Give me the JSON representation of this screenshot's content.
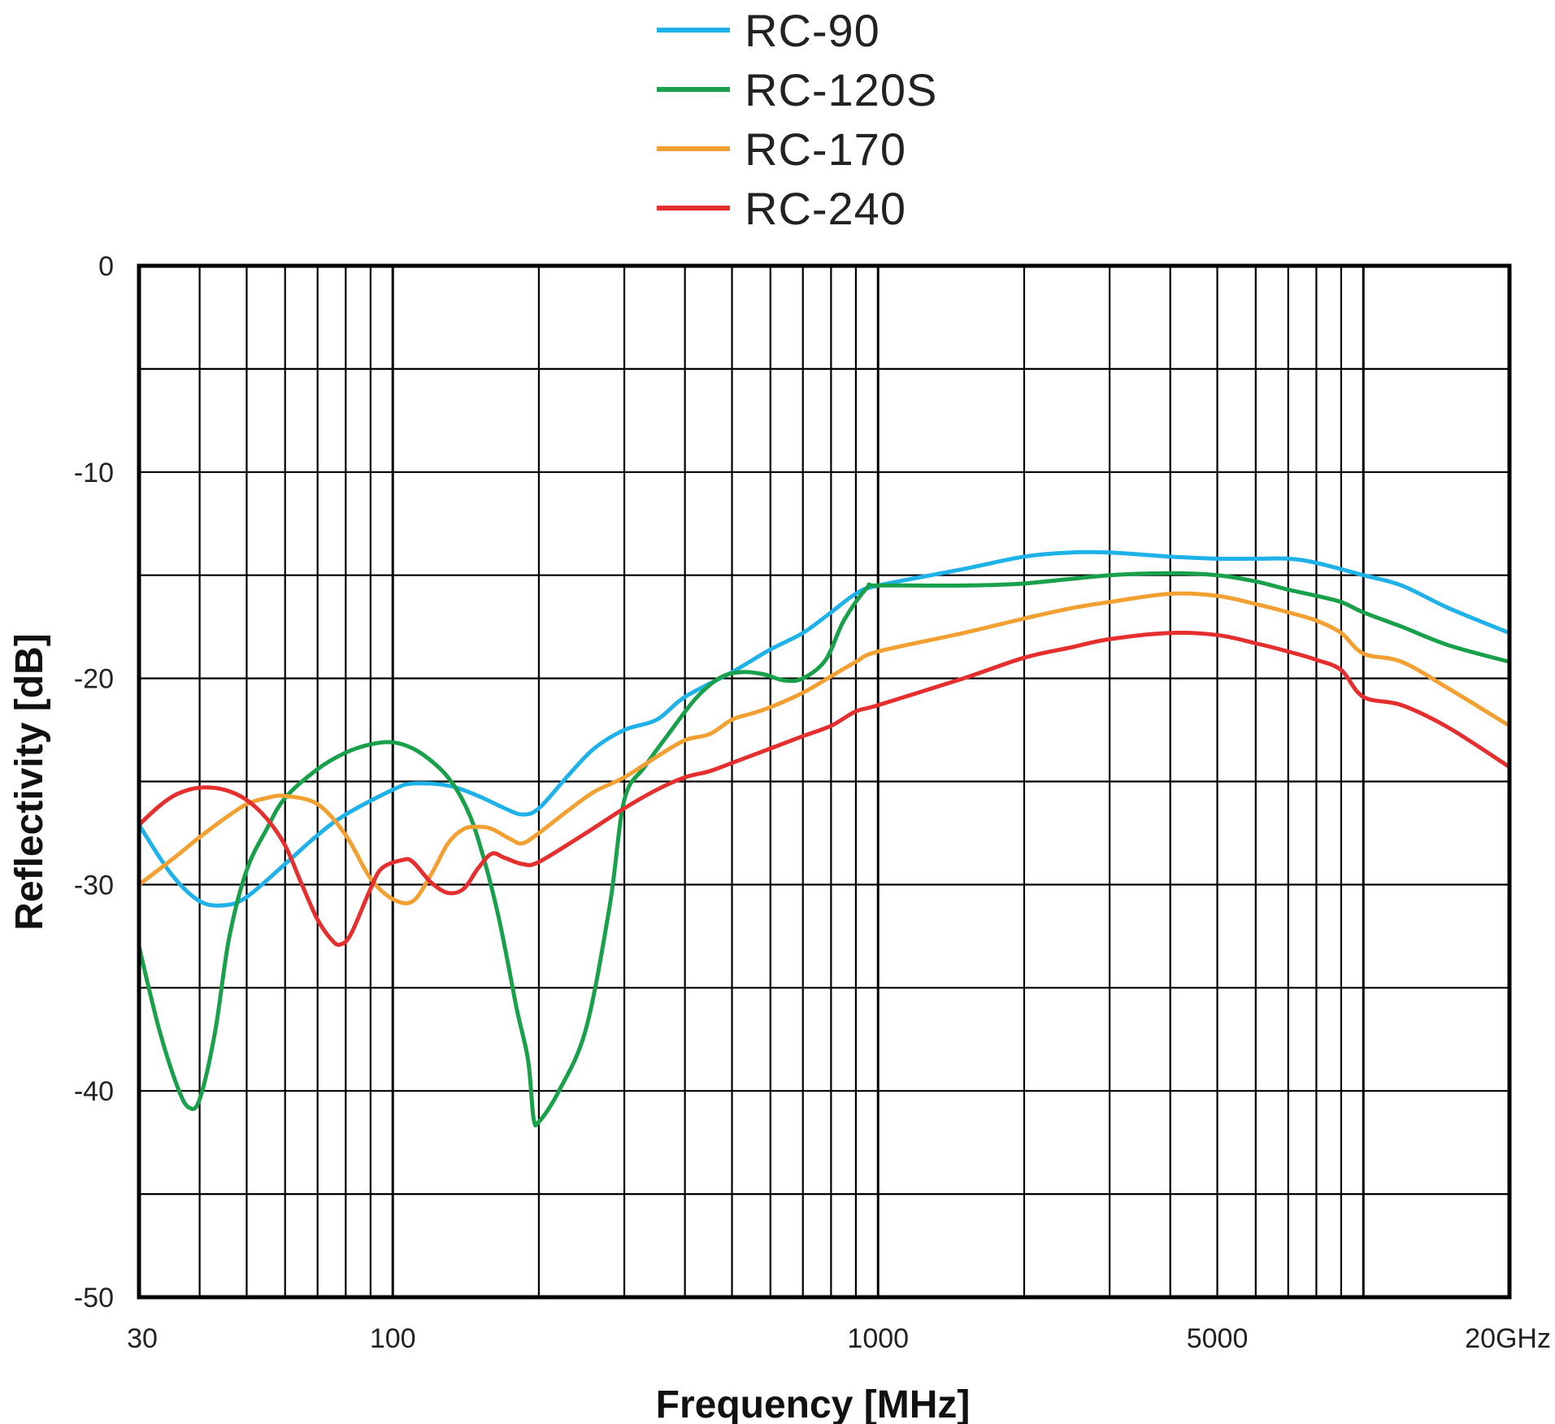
{
  "chart_data": {
    "type": "line",
    "xlabel": "Frequency [MHz]",
    "ylabel": "Reflectivity [dB]",
    "x_scale": "log",
    "xlim": [
      30,
      20000
    ],
    "ylim": [
      -50,
      0
    ],
    "grid": true,
    "legend_position": "top-center",
    "y_ticks": [
      "0",
      "-10",
      "-20",
      "-30",
      "-40",
      "-50"
    ],
    "x_ticks": [
      "30",
      "100",
      "1000",
      "5000",
      "20GHz"
    ],
    "series": [
      {
        "name": "RC-90",
        "color": "#1fb2e8",
        "points": [
          [
            30,
            -27.1
          ],
          [
            35,
            -29.5
          ],
          [
            40,
            -30.8
          ],
          [
            45,
            -31.0
          ],
          [
            50,
            -30.6
          ],
          [
            60,
            -29.0
          ],
          [
            70,
            -27.6
          ],
          [
            80,
            -26.6
          ],
          [
            100,
            -25.4
          ],
          [
            110,
            -25.1
          ],
          [
            130,
            -25.2
          ],
          [
            150,
            -25.7
          ],
          [
            170,
            -26.3
          ],
          [
            185,
            -26.6
          ],
          [
            200,
            -26.3
          ],
          [
            230,
            -24.7
          ],
          [
            260,
            -23.4
          ],
          [
            300,
            -22.5
          ],
          [
            350,
            -22.0
          ],
          [
            400,
            -20.9
          ],
          [
            500,
            -19.7
          ],
          [
            600,
            -18.6
          ],
          [
            700,
            -17.8
          ],
          [
            800,
            -16.8
          ],
          [
            900,
            -15.9
          ],
          [
            1000,
            -15.5
          ],
          [
            1500,
            -14.7
          ],
          [
            2000,
            -14.1
          ],
          [
            2500,
            -13.9
          ],
          [
            3000,
            -13.9
          ],
          [
            4000,
            -14.1
          ],
          [
            5000,
            -14.2
          ],
          [
            6000,
            -14.2
          ],
          [
            7000,
            -14.2
          ],
          [
            8000,
            -14.4
          ],
          [
            10000,
            -15.0
          ],
          [
            12000,
            -15.5
          ],
          [
            15000,
            -16.6
          ],
          [
            20000,
            -17.8
          ]
        ]
      },
      {
        "name": "RC-120S",
        "color": "#18a04a",
        "points": [
          [
            30,
            -33.0
          ],
          [
            33,
            -37.0
          ],
          [
            36,
            -39.8
          ],
          [
            38,
            -40.8
          ],
          [
            40,
            -40.4
          ],
          [
            43,
            -37.2
          ],
          [
            46,
            -32.6
          ],
          [
            50,
            -29.3
          ],
          [
            55,
            -27.3
          ],
          [
            60,
            -25.8
          ],
          [
            70,
            -24.4
          ],
          [
            80,
            -23.6
          ],
          [
            90,
            -23.2
          ],
          [
            100,
            -23.1
          ],
          [
            110,
            -23.4
          ],
          [
            120,
            -24.0
          ],
          [
            130,
            -24.8
          ],
          [
            140,
            -26.0
          ],
          [
            150,
            -27.8
          ],
          [
            165,
            -31.5
          ],
          [
            180,
            -36.0
          ],
          [
            190,
            -38.5
          ],
          [
            195,
            -41.3
          ],
          [
            200,
            -41.5
          ],
          [
            220,
            -40.0
          ],
          [
            250,
            -37.0
          ],
          [
            280,
            -31.0
          ],
          [
            300,
            -25.9
          ],
          [
            330,
            -24.3
          ],
          [
            370,
            -22.7
          ],
          [
            420,
            -21.0
          ],
          [
            470,
            -20.0
          ],
          [
            520,
            -19.7
          ],
          [
            580,
            -19.8
          ],
          [
            640,
            -20.1
          ],
          [
            700,
            -20.0
          ],
          [
            780,
            -19.1
          ],
          [
            850,
            -17.2
          ],
          [
            950,
            -15.6
          ],
          [
            1000,
            -15.5
          ],
          [
            1500,
            -15.5
          ],
          [
            2000,
            -15.4
          ],
          [
            3000,
            -15.0
          ],
          [
            4000,
            -14.9
          ],
          [
            5000,
            -15.0
          ],
          [
            6000,
            -15.3
          ],
          [
            7000,
            -15.7
          ],
          [
            8000,
            -16.0
          ],
          [
            9000,
            -16.3
          ],
          [
            10000,
            -16.8
          ],
          [
            12000,
            -17.5
          ],
          [
            15000,
            -18.4
          ],
          [
            20000,
            -19.2
          ]
        ]
      },
      {
        "name": "RC-170",
        "color": "#f2a032",
        "points": [
          [
            30,
            -30.0
          ],
          [
            35,
            -28.8
          ],
          [
            40,
            -27.7
          ],
          [
            45,
            -26.8
          ],
          [
            50,
            -26.1
          ],
          [
            55,
            -25.8
          ],
          [
            60,
            -25.7
          ],
          [
            70,
            -26.1
          ],
          [
            80,
            -27.6
          ],
          [
            90,
            -29.7
          ],
          [
            100,
            -30.7
          ],
          [
            110,
            -30.8
          ],
          [
            120,
            -29.5
          ],
          [
            130,
            -28.0
          ],
          [
            140,
            -27.3
          ],
          [
            150,
            -27.2
          ],
          [
            160,
            -27.3
          ],
          [
            175,
            -27.8
          ],
          [
            185,
            -28.0
          ],
          [
            200,
            -27.5
          ],
          [
            230,
            -26.4
          ],
          [
            260,
            -25.5
          ],
          [
            300,
            -24.8
          ],
          [
            350,
            -23.8
          ],
          [
            400,
            -23.0
          ],
          [
            450,
            -22.7
          ],
          [
            500,
            -22.0
          ],
          [
            550,
            -21.7
          ],
          [
            600,
            -21.4
          ],
          [
            700,
            -20.7
          ],
          [
            800,
            -19.9
          ],
          [
            900,
            -19.2
          ],
          [
            1000,
            -18.7
          ],
          [
            1500,
            -17.8
          ],
          [
            2000,
            -17.1
          ],
          [
            2500,
            -16.6
          ],
          [
            3000,
            -16.3
          ],
          [
            4000,
            -15.9
          ],
          [
            5000,
            -16.0
          ],
          [
            6000,
            -16.4
          ],
          [
            7000,
            -16.8
          ],
          [
            8000,
            -17.2
          ],
          [
            9000,
            -17.8
          ],
          [
            10000,
            -18.8
          ],
          [
            12000,
            -19.2
          ],
          [
            15000,
            -20.5
          ],
          [
            20000,
            -22.3
          ]
        ]
      },
      {
        "name": "RC-240",
        "color": "#e52f2f",
        "points": [
          [
            30,
            -27.1
          ],
          [
            33,
            -26.2
          ],
          [
            36,
            -25.6
          ],
          [
            40,
            -25.3
          ],
          [
            45,
            -25.4
          ],
          [
            50,
            -25.9
          ],
          [
            55,
            -26.8
          ],
          [
            60,
            -28.1
          ],
          [
            65,
            -30.0
          ],
          [
            70,
            -31.7
          ],
          [
            75,
            -32.7
          ],
          [
            78,
            -32.9
          ],
          [
            82,
            -32.4
          ],
          [
            90,
            -30.2
          ],
          [
            95,
            -29.2
          ],
          [
            105,
            -28.8
          ],
          [
            110,
            -28.9
          ],
          [
            120,
            -29.9
          ],
          [
            130,
            -30.4
          ],
          [
            140,
            -30.2
          ],
          [
            150,
            -29.2
          ],
          [
            160,
            -28.5
          ],
          [
            170,
            -28.7
          ],
          [
            185,
            -29.0
          ],
          [
            200,
            -28.9
          ],
          [
            250,
            -27.5
          ],
          [
            300,
            -26.3
          ],
          [
            350,
            -25.4
          ],
          [
            400,
            -24.8
          ],
          [
            450,
            -24.5
          ],
          [
            500,
            -24.1
          ],
          [
            600,
            -23.4
          ],
          [
            700,
            -22.8
          ],
          [
            800,
            -22.3
          ],
          [
            900,
            -21.6
          ],
          [
            1000,
            -21.3
          ],
          [
            1500,
            -20.0
          ],
          [
            2000,
            -19.0
          ],
          [
            2500,
            -18.5
          ],
          [
            3000,
            -18.1
          ],
          [
            4000,
            -17.8
          ],
          [
            5000,
            -17.9
          ],
          [
            6000,
            -18.3
          ],
          [
            7000,
            -18.7
          ],
          [
            8000,
            -19.1
          ],
          [
            9000,
            -19.6
          ],
          [
            10000,
            -20.9
          ],
          [
            12000,
            -21.3
          ],
          [
            15000,
            -22.4
          ],
          [
            20000,
            -24.3
          ]
        ]
      }
    ]
  }
}
